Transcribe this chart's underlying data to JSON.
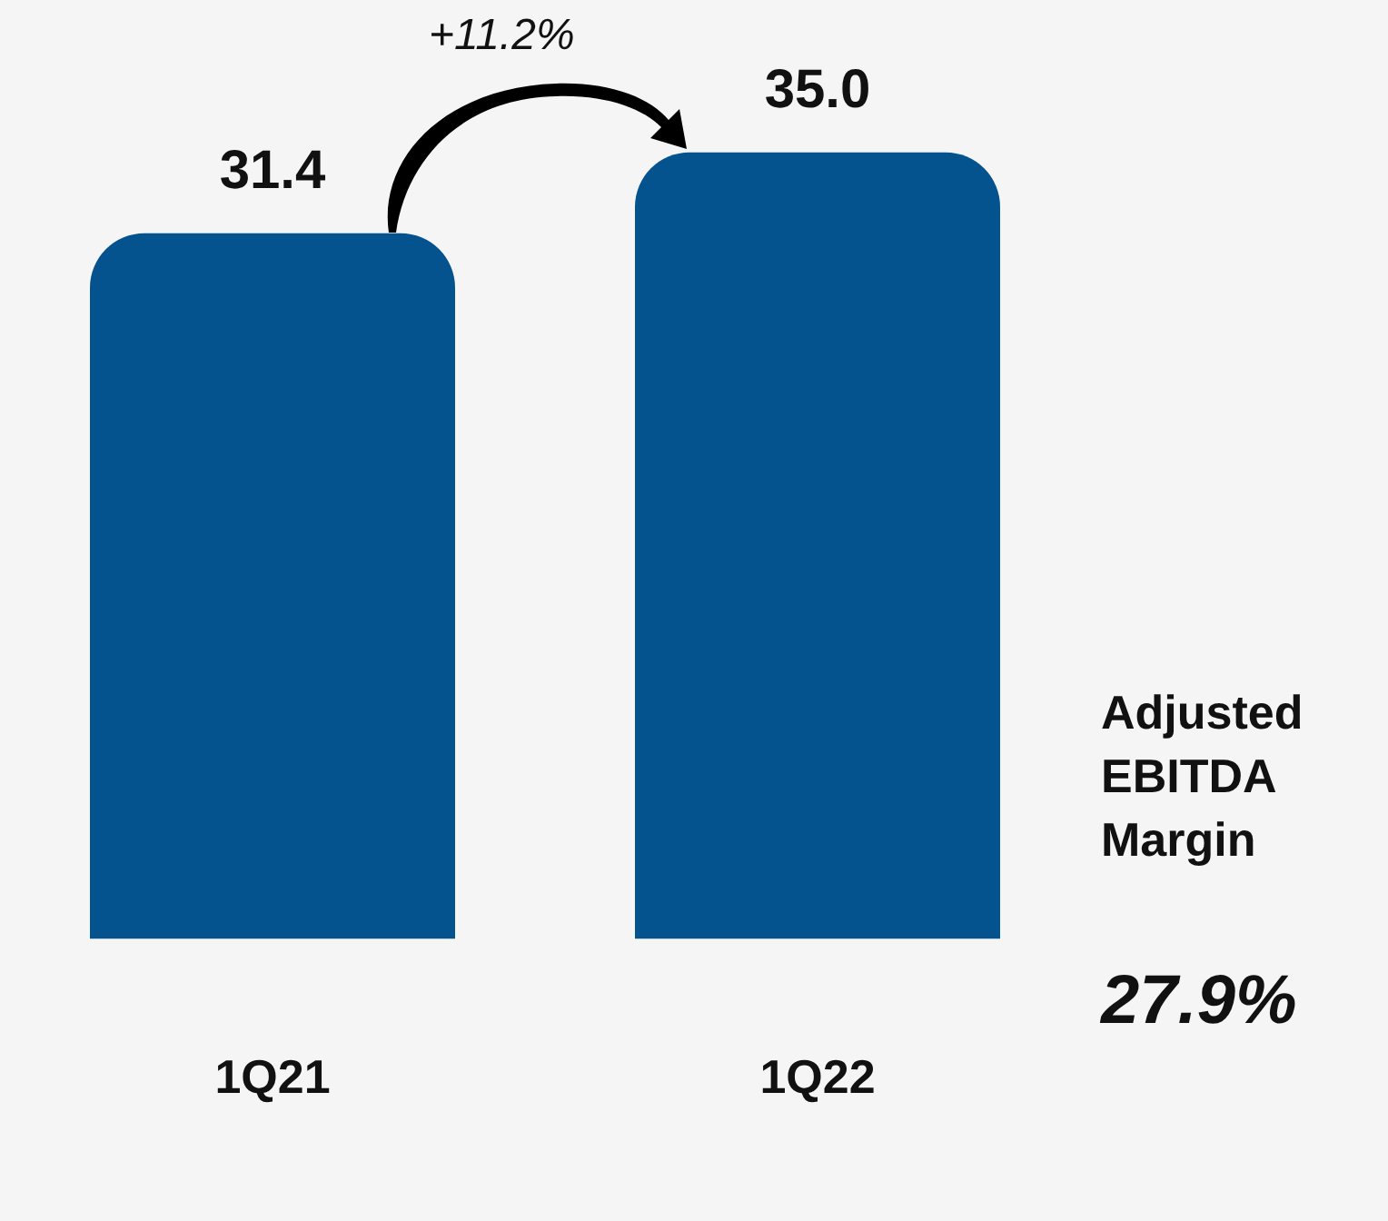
{
  "chart_data": {
    "type": "bar",
    "categories": [
      "1Q21",
      "1Q22"
    ],
    "values": [
      31.4,
      35.0
    ],
    "color": "#04538f",
    "value_labels": [
      "31.4",
      "35.0"
    ],
    "legend": false,
    "grid": false,
    "annotations": [
      "+11.2%",
      "Adjusted EBITDA Margin",
      "27.9%"
    ]
  }
}
